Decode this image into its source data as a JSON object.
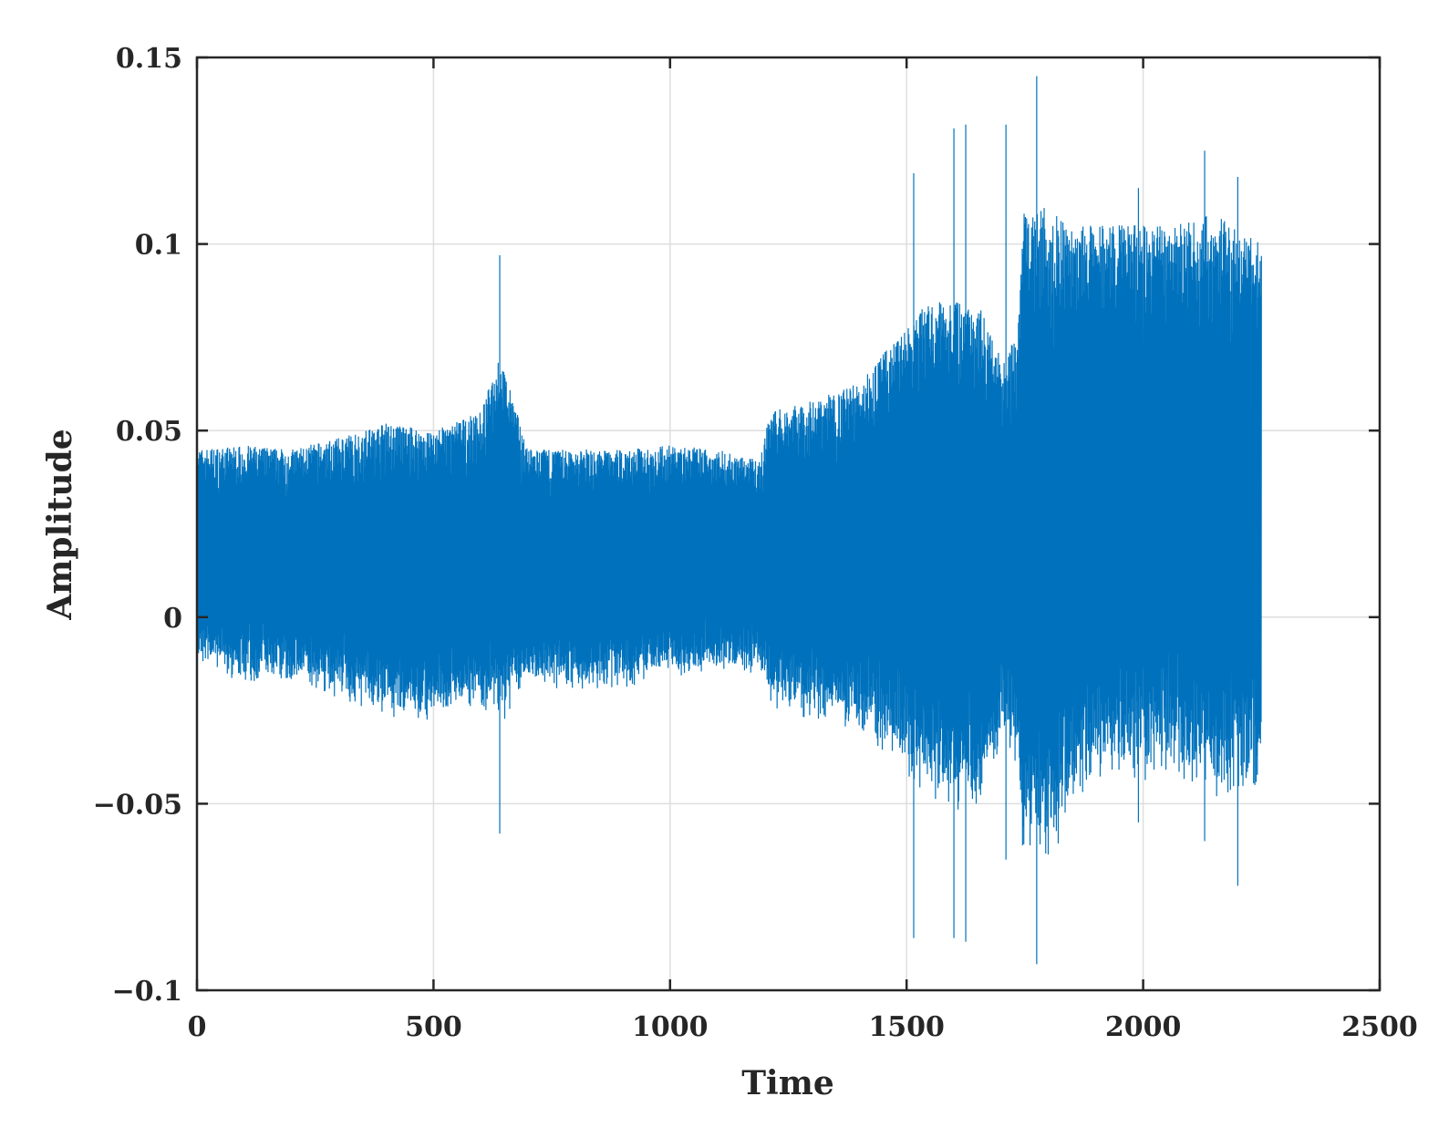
{
  "chart_data": {
    "type": "line",
    "title": "",
    "xlabel": "Time",
    "ylabel": "Amplitude",
    "xlim": [
      0,
      2500
    ],
    "ylim": [
      -0.1,
      0.15
    ],
    "xticks": [
      0,
      500,
      1000,
      1500,
      2000,
      2500
    ],
    "xtick_labels": [
      "0",
      "500",
      "1000",
      "1500",
      "2000",
      "2500"
    ],
    "yticks": [
      -0.1,
      -0.05,
      0,
      0.05,
      0.1,
      0.15
    ],
    "ytick_labels": [
      "−0.1",
      "−0.05",
      "0",
      "0.05",
      "0.1",
      "0.15"
    ],
    "grid": true,
    "legend": "none",
    "series": [
      {
        "color": "#0072bd",
        "x_range": [
          0,
          2250
        ],
        "envelope": [
          {
            "t": 0,
            "max": 0.045,
            "min": -0.012
          },
          {
            "t": 100,
            "max": 0.046,
            "min": -0.018
          },
          {
            "t": 200,
            "max": 0.045,
            "min": -0.018
          },
          {
            "t": 300,
            "max": 0.048,
            "min": -0.022
          },
          {
            "t": 400,
            "max": 0.052,
            "min": -0.028
          },
          {
            "t": 500,
            "max": 0.05,
            "min": -0.028
          },
          {
            "t": 600,
            "max": 0.055,
            "min": -0.025
          },
          {
            "t": 640,
            "max": 0.07,
            "min": -0.03
          },
          {
            "t": 700,
            "max": 0.045,
            "min": -0.018
          },
          {
            "t": 800,
            "max": 0.045,
            "min": -0.02
          },
          {
            "t": 900,
            "max": 0.045,
            "min": -0.02
          },
          {
            "t": 1000,
            "max": 0.046,
            "min": -0.016
          },
          {
            "t": 1100,
            "max": 0.045,
            "min": -0.016
          },
          {
            "t": 1190,
            "max": 0.042,
            "min": -0.015
          },
          {
            "t": 1210,
            "max": 0.055,
            "min": -0.025
          },
          {
            "t": 1300,
            "max": 0.058,
            "min": -0.028
          },
          {
            "t": 1400,
            "max": 0.063,
            "min": -0.033
          },
          {
            "t": 1480,
            "max": 0.075,
            "min": -0.04
          },
          {
            "t": 1550,
            "max": 0.085,
            "min": -0.05
          },
          {
            "t": 1650,
            "max": 0.085,
            "min": -0.055
          },
          {
            "t": 1700,
            "max": 0.07,
            "min": -0.035
          },
          {
            "t": 1735,
            "max": 0.075,
            "min": -0.04
          },
          {
            "t": 1745,
            "max": 0.108,
            "min": -0.065
          },
          {
            "t": 1800,
            "max": 0.11,
            "min": -0.072
          },
          {
            "t": 1850,
            "max": 0.105,
            "min": -0.05
          },
          {
            "t": 1950,
            "max": 0.105,
            "min": -0.045
          },
          {
            "t": 2050,
            "max": 0.105,
            "min": -0.045
          },
          {
            "t": 2150,
            "max": 0.108,
            "min": -0.05
          },
          {
            "t": 2250,
            "max": 0.1,
            "min": -0.048
          }
        ],
        "spikes": [
          {
            "t": 640,
            "max": 0.097,
            "min": -0.058
          },
          {
            "t": 1515,
            "max": 0.119,
            "min": -0.086
          },
          {
            "t": 1600,
            "max": 0.131,
            "min": -0.086
          },
          {
            "t": 1625,
            "max": 0.132,
            "min": -0.087
          },
          {
            "t": 1710,
            "max": 0.132,
            "min": -0.065
          },
          {
            "t": 1775,
            "max": 0.145,
            "min": -0.093
          },
          {
            "t": 1990,
            "max": 0.115,
            "min": -0.055
          },
          {
            "t": 2130,
            "max": 0.125,
            "min": -0.06
          },
          {
            "t": 2200,
            "max": 0.118,
            "min": -0.072
          }
        ]
      }
    ]
  }
}
